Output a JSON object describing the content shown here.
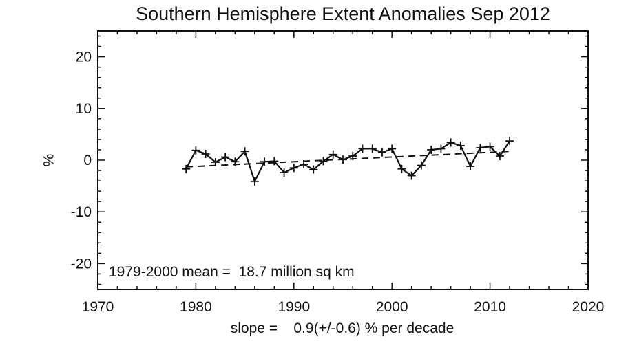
{
  "chart_data": {
    "type": "line",
    "title": "Southern Hemisphere Extent Anomalies Sep 2012",
    "xlabel": "",
    "ylabel": "%",
    "xlim": [
      1970,
      2020
    ],
    "ylim": [
      -25,
      25
    ],
    "x_ticks": [
      1970,
      1980,
      1990,
      2000,
      2010,
      2020
    ],
    "y_ticks": [
      -20,
      -10,
      0,
      10,
      20
    ],
    "grid": false,
    "series": [
      {
        "marker": "plus",
        "line_style": "solid",
        "color": "#111111",
        "x": [
          1979,
          1980,
          1981,
          1982,
          1983,
          1984,
          1985,
          1986,
          1987,
          1988,
          1989,
          1990,
          1991,
          1992,
          1993,
          1994,
          1995,
          1996,
          1997,
          1998,
          1999,
          2000,
          2001,
          2002,
          2003,
          2004,
          2005,
          2006,
          2007,
          2008,
          2009,
          2010,
          2011,
          2012
        ],
        "y": [
          -1.7,
          1.9,
          1.2,
          -0.4,
          0.6,
          -0.3,
          1.7,
          -4.1,
          -0.3,
          -0.2,
          -2.4,
          -1.5,
          -0.8,
          -1.8,
          -0.2,
          1.1,
          0.1,
          0.8,
          2.2,
          2.2,
          1.5,
          2.2,
          -1.7,
          -3.0,
          -1.0,
          2.0,
          2.2,
          3.4,
          2.8,
          -1.2,
          2.4,
          2.6,
          0.8,
          3.7
        ]
      }
    ],
    "trend_line": {
      "line_style": "dashed",
      "color": "#111111",
      "x": [
        1979,
        2012
      ],
      "y": [
        -1.3,
        1.7
      ]
    },
    "annotations": {
      "mean": "1979-2000 mean =  18.7 million sq km",
      "slope": "slope =    0.9(+/-0.6) % per decade"
    }
  }
}
